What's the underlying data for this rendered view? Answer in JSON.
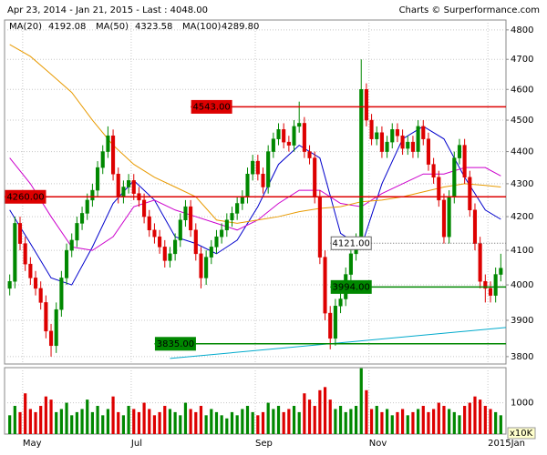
{
  "chart_data": {
    "type": "candlestick",
    "title": "Apr 23, 2014 - Jan 21, 2015 - Last : 4048.00",
    "credit": "Charts © Surperformance.com",
    "log_y": true,
    "grid": true,
    "xlim": [
      -1,
      96
    ],
    "ylim": [
      3780,
      4834
    ],
    "yticks": [
      3800,
      3900,
      4000,
      4100,
      4200,
      4300,
      4400,
      4500,
      4600,
      4700,
      4800
    ],
    "xticks": [
      {
        "value": 2.5,
        "label": "May"
      },
      {
        "value": 23.5,
        "label": "Jul"
      },
      {
        "value": 47.5,
        "label": "Sep"
      },
      {
        "value": 69.5,
        "label": "Nov"
      },
      {
        "value": 92.5,
        "label": "2015Jan"
      }
    ],
    "up_color": "#008800",
    "down_color": "#dd0000",
    "open": [
      3990,
      4010,
      4180,
      4120,
      4060,
      4020,
      3990,
      3950,
      3870,
      3830,
      3930,
      4020,
      4100,
      4130,
      4180,
      4210,
      4250,
      4280,
      4350,
      4400,
      4450,
      4330,
      4260,
      4290,
      4310,
      4270,
      4250,
      4200,
      4160,
      4140,
      4110,
      4070,
      4090,
      4130,
      4190,
      4230,
      4160,
      4090,
      4020,
      4080,
      4110,
      4140,
      4160,
      4190,
      4210,
      4240,
      4260,
      4330,
      4370,
      4330,
      4290,
      4400,
      4440,
      4470,
      4430,
      4420,
      4480,
      4490,
      4400,
      4380,
      4260,
      4080,
      3920,
      3850,
      3940,
      3960,
      4030,
      4090,
      4130,
      4600,
      4500,
      4440,
      4460,
      4400,
      4430,
      4470,
      4450,
      4410,
      4430,
      4400,
      4480,
      4440,
      4360,
      4320,
      4250,
      4140,
      4260,
      4380,
      4420,
      4320,
      4220,
      4120,
      4010,
      3990,
      3970,
      4030
    ],
    "high": [
      4030,
      4200,
      4200,
      4140,
      4080,
      4040,
      4010,
      3970,
      3890,
      3950,
      4040,
      4120,
      4150,
      4200,
      4230,
      4270,
      4300,
      4370,
      4420,
      4480,
      4470,
      4350,
      4310,
      4330,
      4330,
      4290,
      4270,
      4220,
      4180,
      4160,
      4130,
      4110,
      4150,
      4210,
      4250,
      4250,
      4180,
      4110,
      4100,
      4130,
      4160,
      4180,
      4210,
      4230,
      4260,
      4280,
      4350,
      4390,
      4390,
      4350,
      4420,
      4460,
      4490,
      4490,
      4450,
      4500,
      4560,
      4510,
      4420,
      4400,
      4280,
      4100,
      3940,
      3960,
      3980,
      4050,
      4110,
      4150,
      4700,
      4620,
      4520,
      4480,
      4480,
      4450,
      4490,
      4490,
      4470,
      4450,
      4450,
      4500,
      4500,
      4460,
      4380,
      4340,
      4270,
      4280,
      4400,
      4440,
      4440,
      4340,
      4240,
      4140,
      4030,
      4010,
      4050,
      4090
    ],
    "low": [
      3970,
      3990,
      4100,
      4040,
      4000,
      3970,
      3930,
      3850,
      3800,
      3810,
      3910,
      4000,
      4080,
      4110,
      4160,
      4190,
      4230,
      4260,
      4330,
      4380,
      4310,
      4240,
      4240,
      4270,
      4250,
      4230,
      4180,
      4140,
      4120,
      4090,
      4050,
      4050,
      4070,
      4110,
      4170,
      4140,
      4070,
      3990,
      4000,
      4060,
      4090,
      4120,
      4140,
      4170,
      4190,
      4220,
      4240,
      4310,
      4310,
      4270,
      4270,
      4380,
      4420,
      4410,
      4400,
      4400,
      4460,
      4380,
      4360,
      4240,
      4060,
      3900,
      3820,
      3830,
      3920,
      3940,
      4010,
      4070,
      4110,
      4480,
      4420,
      4420,
      4380,
      4380,
      4410,
      4430,
      4390,
      4390,
      4380,
      4380,
      4420,
      4340,
      4300,
      4230,
      4120,
      4120,
      4240,
      4360,
      4300,
      4200,
      4100,
      3990,
      3950,
      3950,
      3950,
      4010
    ],
    "close": [
      4010,
      4180,
      4120,
      4060,
      4020,
      3990,
      3950,
      3870,
      3830,
      3930,
      4020,
      4100,
      4130,
      4180,
      4210,
      4250,
      4280,
      4350,
      4400,
      4450,
      4330,
      4260,
      4290,
      4310,
      4270,
      4250,
      4200,
      4160,
      4140,
      4110,
      4070,
      4090,
      4130,
      4190,
      4230,
      4160,
      4090,
      4020,
      4080,
      4110,
      4140,
      4160,
      4190,
      4210,
      4240,
      4260,
      4330,
      4370,
      4330,
      4290,
      4400,
      4440,
      4470,
      4430,
      4420,
      4480,
      4490,
      4400,
      4380,
      4260,
      4080,
      3920,
      3850,
      3940,
      3960,
      4030,
      4090,
      4130,
      4600,
      4500,
      4440,
      4460,
      4400,
      4430,
      4470,
      4450,
      4410,
      4430,
      4400,
      4480,
      4440,
      4360,
      4320,
      4250,
      4140,
      4260,
      4380,
      4420,
      4320,
      4220,
      4120,
      4010,
      3990,
      3970,
      4030,
      4048
    ],
    "volume": [
      600,
      900,
      700,
      1300,
      800,
      700,
      900,
      1200,
      1100,
      700,
      800,
      1000,
      600,
      700,
      800,
      1100,
      700,
      900,
      600,
      800,
      1200,
      700,
      600,
      900,
      800,
      700,
      1000,
      800,
      600,
      700,
      900,
      800,
      700,
      600,
      1000,
      800,
      700,
      900,
      600,
      800,
      700,
      600,
      500,
      700,
      600,
      800,
      900,
      700,
      600,
      700,
      1000,
      800,
      900,
      700,
      800,
      900,
      700,
      1300,
      1100,
      900,
      1400,
      1500,
      1100,
      800,
      900,
      700,
      800,
      900,
      2100,
      1400,
      800,
      900,
      700,
      800,
      600,
      700,
      800,
      600,
      700,
      800,
      900,
      700,
      800,
      1000,
      900,
      800,
      700,
      600,
      900,
      1000,
      1200,
      1100,
      900,
      800,
      700,
      600
    ],
    "volume_ylim": [
      0,
      2120
    ],
    "volume_yticks": [
      1000
    ],
    "volume_unit": "x10K",
    "overlays": {
      "x": [
        0,
        4,
        8,
        12,
        16,
        20,
        24,
        28,
        32,
        36,
        40,
        44,
        48,
        52,
        56,
        60,
        64,
        68,
        72,
        76,
        80,
        84,
        88,
        92,
        95
      ],
      "series": [
        {
          "name": "MA(20)",
          "color": "#0000cc",
          "last": 4192.08,
          "values": [
            4220,
            4120,
            4020,
            4000,
            4110,
            4240,
            4310,
            4250,
            4140,
            4120,
            4090,
            4130,
            4230,
            4360,
            4420,
            4380,
            4150,
            4110,
            4300,
            4440,
            4480,
            4440,
            4320,
            4220,
            4192
          ]
        },
        {
          "name": "MA(50)",
          "color": "#cc00cc",
          "last": 4323.58,
          "values": [
            4380,
            4300,
            4200,
            4110,
            4100,
            4140,
            4230,
            4250,
            4220,
            4200,
            4180,
            4160,
            4190,
            4240,
            4280,
            4280,
            4240,
            4230,
            4270,
            4300,
            4330,
            4330,
            4350,
            4350,
            4324
          ]
        },
        {
          "name": "MA(100)",
          "color": "#e89a00",
          "last": {
            "value": 4289.8,
            "label": "4289.80"
          },
          "values": [
            4750,
            4710,
            4650,
            4590,
            4500,
            4420,
            4360,
            4320,
            4290,
            4260,
            4190,
            4180,
            4190,
            4200,
            4215,
            4225,
            4230,
            4245,
            4250,
            4260,
            4275,
            4290,
            4300,
            4295,
            4290
          ]
        }
      ]
    },
    "levels": [
      {
        "value": 4543,
        "label": "4543.00",
        "start": 35,
        "color": "#dd0000",
        "style": "solid"
      },
      {
        "value": 4260,
        "label": "4260.00",
        "start": -1,
        "color": "#dd0000",
        "style": "solid"
      },
      {
        "value": 4121,
        "label": "4121.00",
        "start": 62,
        "color": "#666666",
        "style": "dotted"
      },
      {
        "value": 3994,
        "label": "3994.00",
        "start": 62,
        "color": "#008800",
        "style": "solid"
      },
      {
        "value": 3835,
        "label": "3835.00",
        "start": 28,
        "color": "#008800",
        "style": "solid"
      }
    ],
    "trendline": {
      "color": "#00aacc",
      "x": [
        31,
        96
      ],
      "values": [
        3795,
        3880
      ]
    }
  }
}
